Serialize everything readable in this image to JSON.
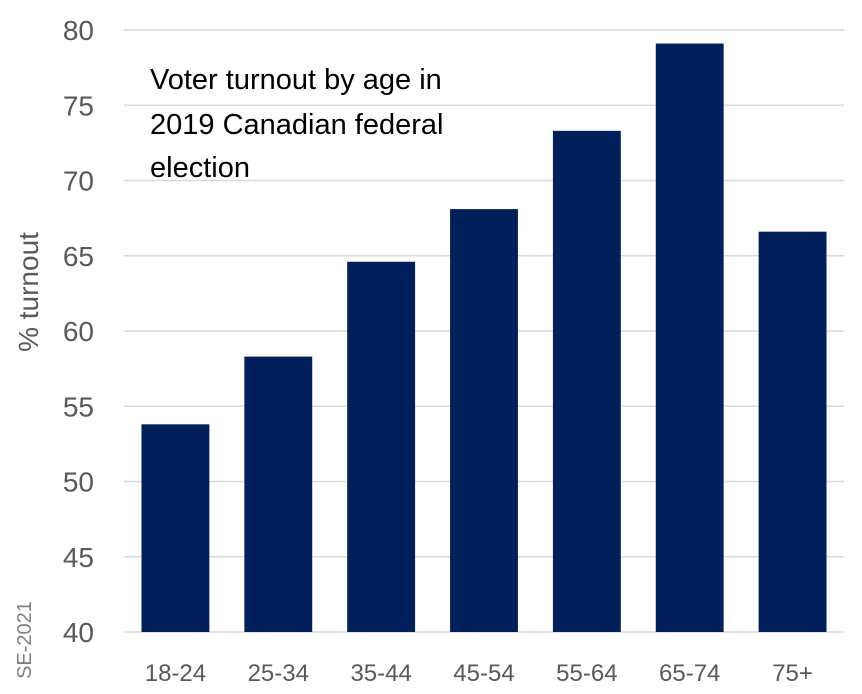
{
  "chart_data": {
    "type": "bar",
    "title_lines": [
      "Voter turnout by age in",
      "2019 Canadian federal",
      "election"
    ],
    "ylabel": "% turnout",
    "xlabel": "",
    "credit": "SE-2021",
    "categories": [
      "18-24",
      "25-34",
      "35-44",
      "45-54",
      "55-64",
      "65-74",
      "75+"
    ],
    "values": [
      53.8,
      58.3,
      64.6,
      68.1,
      73.3,
      79.1,
      66.6
    ],
    "ylim": [
      40,
      80
    ],
    "yticks": [
      40,
      45,
      50,
      55,
      60,
      65,
      70,
      75,
      80
    ],
    "grid": true,
    "bar_color": "#001f5b",
    "grid_color": "#d9d9d9"
  }
}
